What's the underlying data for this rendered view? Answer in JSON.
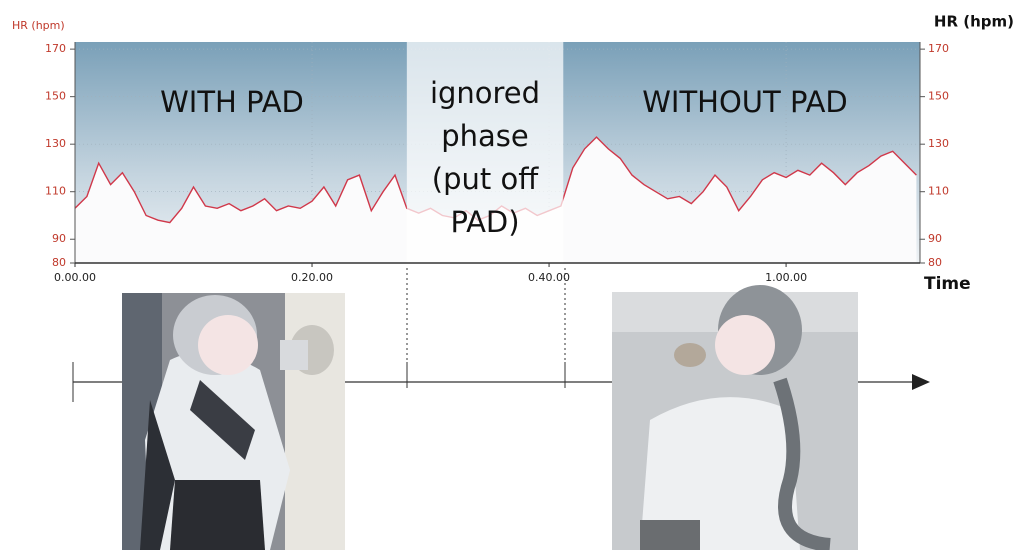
{
  "chart_data": {
    "type": "line",
    "y_label_left": "HR (hpm)",
    "y_label_right": "HR (hpm)",
    "x_label": "Time",
    "x": [
      0,
      1,
      2,
      3,
      4,
      5,
      6,
      7,
      8,
      9,
      10,
      11,
      12,
      13,
      14,
      15,
      16,
      17,
      18,
      19,
      20,
      21,
      22,
      23,
      24,
      25,
      26,
      27,
      28,
      29,
      30,
      31,
      32,
      33,
      34,
      35,
      36,
      37,
      38,
      39,
      40,
      41,
      42,
      43,
      44,
      45,
      46,
      47,
      48,
      49,
      50,
      51,
      52,
      53,
      54,
      55,
      56,
      57,
      58,
      59,
      60,
      61,
      62,
      63,
      64,
      65,
      66,
      67,
      68,
      69,
      70,
      71
    ],
    "values": [
      103,
      108,
      122,
      113,
      118,
      110,
      100,
      98,
      97,
      103,
      112,
      104,
      103,
      105,
      102,
      104,
      107,
      102,
      104,
      103,
      106,
      112,
      104,
      115,
      117,
      102,
      110,
      117,
      103,
      101,
      103,
      100,
      99,
      102,
      98,
      100,
      104,
      101,
      103,
      100,
      102,
      104,
      120,
      128,
      133,
      128,
      124,
      117,
      113,
      110,
      107,
      108,
      105,
      110,
      117,
      112,
      102,
      108,
      115,
      118,
      116,
      119,
      117,
      122,
      118,
      113,
      118,
      121,
      125,
      127,
      122,
      117
    ],
    "color": "#d0384a",
    "xlim": [
      0,
      71.3
    ],
    "ylim": [
      80,
      173
    ],
    "xticks": [
      {
        "value": 0,
        "label": "0.00.00"
      },
      {
        "value": 20,
        "label": "0.20.00"
      },
      {
        "value": 40,
        "label": "0.40.00"
      },
      {
        "value": 60,
        "label": "1.00.00"
      }
    ],
    "yticks": [
      80,
      90,
      110,
      130,
      150,
      170
    ],
    "grid": true,
    "highlight_range": [
      28,
      41.2
    ],
    "annotations": {
      "with_pad": "WITH PAD",
      "ignored": [
        "ignored",
        "phase",
        "(put off",
        "PAD)"
      ],
      "without_pad": "WITHOUT PAD"
    }
  }
}
